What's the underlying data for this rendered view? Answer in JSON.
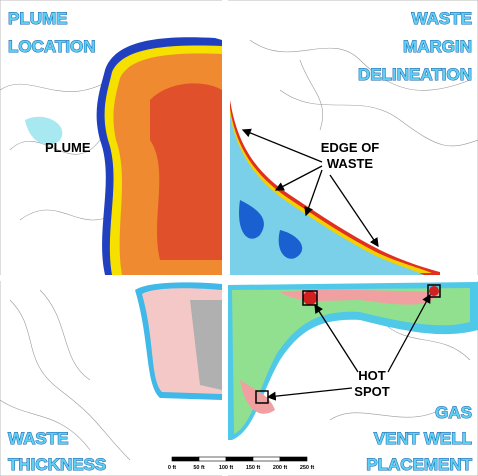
{
  "panels": {
    "plume_location": {
      "title": [
        "PLUME",
        "LOCATION"
      ],
      "label": "PLUME"
    },
    "waste_margin_delineation": {
      "title": [
        "WASTE",
        "MARGIN",
        "DELINEATION"
      ],
      "label": [
        "EDGE OF",
        "WASTE"
      ]
    },
    "waste_thickness": {
      "title": [
        "WASTE",
        "THICKNESS"
      ]
    },
    "gas_vent_well_placement": {
      "title": [
        "GAS",
        "VENT WELL",
        "PLACEMENT"
      ],
      "label": [
        "HOT",
        "SPOT"
      ]
    }
  },
  "scale_bar": {
    "labels": [
      "0 ft",
      "50 ft",
      "100 ft",
      "150 ft",
      "200 ft",
      "250 ft"
    ]
  }
}
